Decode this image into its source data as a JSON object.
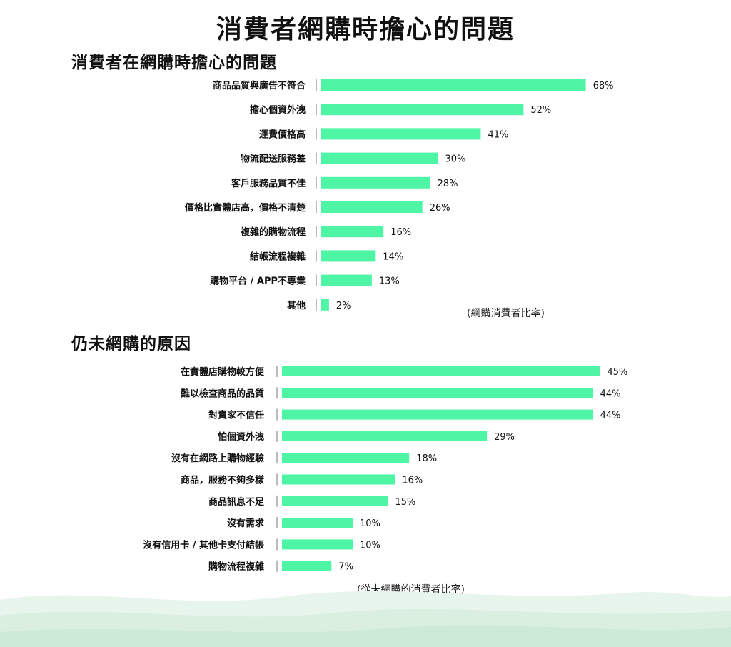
{
  "main_title": "消費者網購時擔心的問題",
  "chart_data": [
    {
      "type": "bar",
      "orientation": "horizontal",
      "title": "消費者在網購時擔心的問題",
      "categories": [
        "商品品質與廣告不符合",
        "擔心個資外洩",
        "運費價格高",
        "物流配送服務差",
        "客戶服務品質不佳",
        "價格比實體店高，價格不清楚",
        "複雜的購物流程",
        "結帳流程複雜",
        "購物平台 / APP不專業",
        "其他"
      ],
      "values": [
        68,
        52,
        41,
        30,
        28,
        26,
        16,
        14,
        13,
        2
      ],
      "value_labels": [
        "68%",
        "52%",
        "41%",
        "30%",
        "28%",
        "26%",
        "16%",
        "14%",
        "13%",
        "2%"
      ],
      "unit": "%",
      "note": "(網購消費者比率)",
      "bar_color": "#4ef5a4"
    },
    {
      "type": "bar",
      "orientation": "horizontal",
      "title": "仍未網購的原因",
      "categories": [
        "在實體店購物較方便",
        "難以檢查商品的品質",
        "對賣家不信任",
        "怕個資外洩",
        "沒有在網路上購物經驗",
        "商品，服務不夠多樣",
        "商品訊息不足",
        "沒有需求",
        "沒有信用卡 / 其他卡支付結帳",
        "購物流程複雜"
      ],
      "values": [
        45,
        44,
        44,
        29,
        18,
        16,
        15,
        10,
        10,
        7
      ],
      "value_labels": [
        "45%",
        "44%",
        "44%",
        "29%",
        "18%",
        "16%",
        "15%",
        "10%",
        "10%",
        "7%"
      ],
      "unit": "%",
      "note": "(從未網購的消費者比率)",
      "bar_color": "#4ef5a4"
    }
  ]
}
